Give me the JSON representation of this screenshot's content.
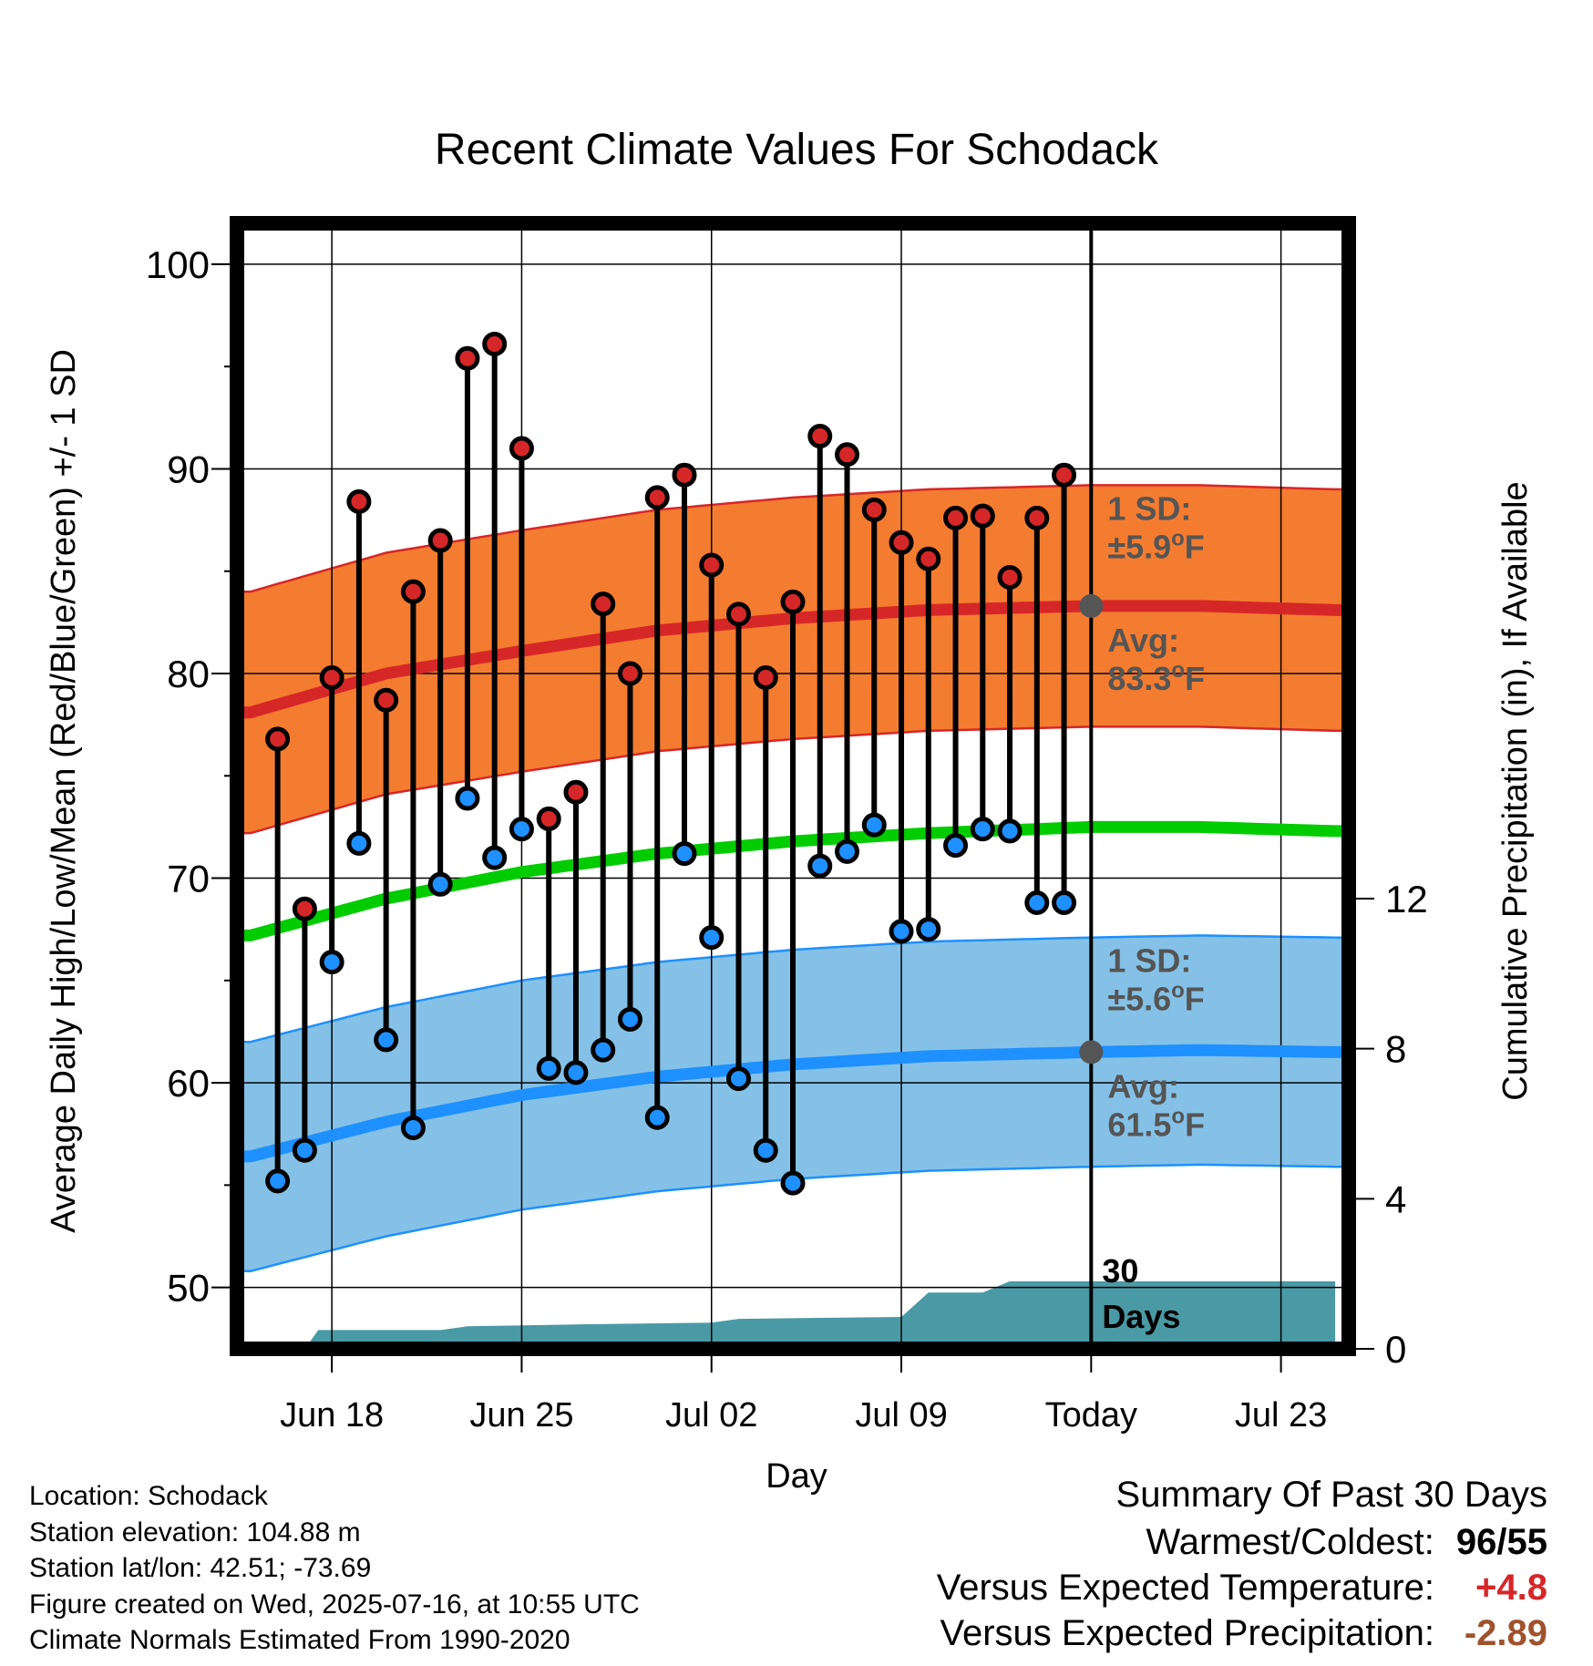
{
  "chart_data": {
    "type": "line",
    "title": "Recent Climate Values For Schodack",
    "xlabel": "Day",
    "ylabel": "Average Daily High/Low/Mean (Red/Blue/Green) +/- 1 SD",
    "y2label": "Cumulative Precipitation (in), If Available",
    "x_tick_labels": [
      "Jun 18",
      "Jun 25",
      "Jul 02",
      "Jul 09",
      "Today",
      "Jul 23"
    ],
    "x_tick_days": [
      3,
      10,
      17,
      24,
      31,
      38
    ],
    "xlim_days": [
      -0.5,
      40.5
    ],
    "ylim": [
      47,
      102
    ],
    "y_ticks": [
      50,
      60,
      70,
      80,
      90,
      100
    ],
    "y2lim": [
      0,
      30
    ],
    "y2_ticks": [
      0,
      4,
      8,
      12
    ],
    "today_day": 31,
    "grid": true,
    "highs": [
      76.8,
      68.5,
      79.8,
      88.4,
      78.7,
      84.0,
      86.5,
      95.4,
      96.1,
      91.0,
      72.9,
      74.2,
      83.4,
      80.0,
      88.6,
      89.7,
      85.3,
      82.9,
      79.8,
      83.5,
      91.6,
      90.7,
      88.0,
      86.4,
      85.6,
      87.6,
      87.7,
      84.7,
      87.6,
      89.7
    ],
    "lows": [
      55.2,
      56.7,
      65.9,
      71.7,
      62.1,
      57.8,
      69.7,
      73.9,
      71.0,
      72.4,
      60.7,
      60.5,
      61.6,
      63.1,
      58.3,
      71.2,
      67.1,
      60.2,
      56.7,
      55.1,
      70.6,
      71.3,
      72.6,
      67.4,
      67.5,
      71.6,
      72.4,
      72.3,
      68.8,
      68.8
    ],
    "normal_high_avg_x": [
      0,
      5,
      10,
      15,
      20,
      25,
      31,
      35,
      40
    ],
    "normal_high_avg": [
      78.1,
      80.0,
      81.1,
      82.1,
      82.7,
      83.1,
      83.3,
      83.3,
      83.1
    ],
    "normal_high_sd": 5.9,
    "normal_low_avg_x": [
      0,
      5,
      10,
      15,
      20,
      25,
      31,
      35,
      40
    ],
    "normal_low_avg": [
      56.4,
      58.1,
      59.4,
      60.3,
      60.9,
      61.3,
      61.5,
      61.6,
      61.5
    ],
    "normal_low_sd": 5.6,
    "normal_mean_avg_x": [
      0,
      5,
      10,
      15,
      20,
      25,
      31,
      35,
      40
    ],
    "normal_mean_avg": [
      67.2,
      69.0,
      70.3,
      71.2,
      71.8,
      72.2,
      72.5,
      72.5,
      72.3
    ],
    "precip_cumulative_days": [
      0,
      2,
      2.5,
      7,
      8,
      12,
      17,
      18,
      24,
      25,
      27,
      28,
      29,
      30,
      31,
      40
    ],
    "precip_cumulative_in": [
      0,
      0,
      0.5,
      0.5,
      0.6,
      0.65,
      0.7,
      0.8,
      0.85,
      1.5,
      1.5,
      1.8,
      1.8,
      1.8,
      1.8,
      1.8
    ],
    "annotations": {
      "high_sd_label": "1 SD:",
      "high_sd_value": "±5.9",
      "high_avg_label": "Avg:",
      "high_avg_value": "83.3",
      "low_sd_label": "1 SD:",
      "low_sd_value": "±5.6",
      "low_avg_label": "Avg:",
      "low_avg_value": "61.5",
      "unit_sup": "o",
      "unit_letter": "F",
      "precip_line1": "30",
      "precip_line2": "Days"
    },
    "colors": {
      "high_band": "#f47c30",
      "high_band_edge": "#d62728",
      "high_avg": "#d62728",
      "low_band": "#85c1e6",
      "low_band_edge": "#1e90ff",
      "low_avg": "#1e90ff",
      "mean_avg": "#00cc00",
      "high_dot": "#d62728",
      "low_dot": "#1e90ff",
      "precip": "#4a9aa5",
      "annotation": "#555555"
    }
  },
  "info": {
    "location": "Location: Schodack",
    "elevation": "Station elevation: 104.88 m",
    "latlon": "Station lat/lon: 42.51; -73.69",
    "created": "Figure created on Wed, 2025-07-16, at 10:55 UTC",
    "normals": "Climate Normals Estimated From 1990-2020"
  },
  "summary": {
    "title": "Summary Of Past 30 Days",
    "warm_label": "Warmest/Coldest:",
    "warm_value": "96/55",
    "temp_label": "Versus Expected Temperature:",
    "temp_value": "+4.8",
    "precip_label": "Versus Expected Precipitation:",
    "precip_value": "-2.89"
  }
}
